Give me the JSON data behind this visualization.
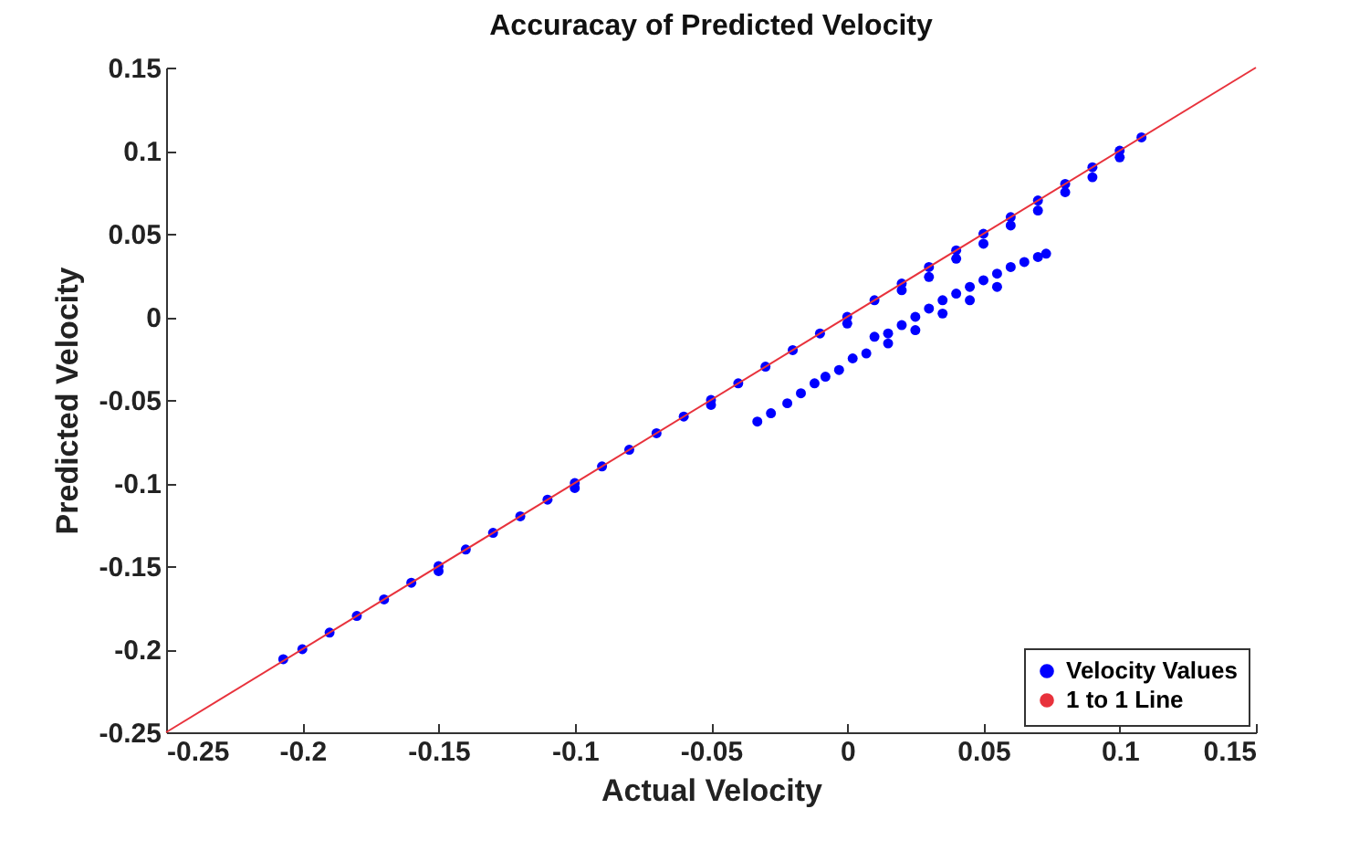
{
  "chart_data": {
    "type": "scatter",
    "title": "Accuracay of Predicted Velocity",
    "xlabel": "Actual Velocity",
    "ylabel": "Predicted Velocity",
    "xlim": [
      -0.25,
      0.15
    ],
    "ylim": [
      -0.25,
      0.15
    ],
    "xticks": [
      -0.25,
      -0.2,
      -0.15,
      -0.1,
      -0.05,
      0,
      0.05,
      0.1,
      0.15
    ],
    "yticks": [
      -0.25,
      -0.2,
      -0.15,
      -0.1,
      -0.05,
      0,
      0.05,
      0.1,
      0.15
    ],
    "grid": false,
    "legend": "bottom right",
    "series": [
      {
        "name": "Velocity Values",
        "color": "#0000ff",
        "marker": "circle",
        "x": [
          -0.207,
          -0.2,
          -0.19,
          -0.18,
          -0.17,
          -0.16,
          -0.15,
          -0.14,
          -0.13,
          -0.12,
          -0.11,
          -0.1,
          -0.09,
          -0.08,
          -0.07,
          -0.06,
          -0.05,
          -0.04,
          -0.03,
          -0.02,
          -0.01,
          0,
          0.01,
          0.02,
          0.03,
          0.04,
          0.05,
          0.06,
          0.07,
          0.08,
          0.09,
          0.1,
          0.108,
          -0.15,
          -0.1,
          -0.05,
          0.0,
          0.02,
          0.04,
          0.06,
          0.08,
          0.1,
          0.03,
          0.05,
          0.07,
          0.09,
          -0.033,
          -0.028,
          -0.022,
          -0.017,
          -0.012,
          -0.008,
          -0.003,
          0.002,
          0.007,
          0.01,
          0.015,
          0.02,
          0.025,
          0.03,
          0.035,
          0.04,
          0.045,
          0.05,
          0.055,
          0.06,
          0.065,
          0.07,
          0.073,
          0.015,
          0.025,
          0.035,
          0.045,
          0.055
        ],
        "values": [
          -0.206,
          -0.2,
          -0.19,
          -0.18,
          -0.17,
          -0.16,
          -0.15,
          -0.14,
          -0.13,
          -0.12,
          -0.11,
          -0.1,
          -0.09,
          -0.08,
          -0.07,
          -0.06,
          -0.05,
          -0.04,
          -0.03,
          -0.02,
          -0.01,
          0,
          0.01,
          0.02,
          0.03,
          0.04,
          0.05,
          0.06,
          0.07,
          0.08,
          0.09,
          0.1,
          0.108,
          -0.153,
          -0.103,
          -0.053,
          -0.004,
          0.016,
          0.035,
          0.055,
          0.075,
          0.096,
          0.024,
          0.044,
          0.064,
          0.084,
          -0.063,
          -0.058,
          -0.052,
          -0.046,
          -0.04,
          -0.036,
          -0.032,
          -0.025,
          -0.022,
          -0.012,
          -0.01,
          -0.005,
          0.0,
          0.005,
          0.01,
          0.014,
          0.018,
          0.022,
          0.026,
          0.03,
          0.033,
          0.036,
          0.038,
          -0.016,
          -0.008,
          0.002,
          0.01,
          0.018
        ]
      },
      {
        "name": "1 to 1 Line",
        "color": "#e8323c",
        "type": "line",
        "line_style": "solid",
        "x": [
          -0.25,
          0.15
        ],
        "values": [
          -0.25,
          0.15
        ]
      }
    ]
  }
}
